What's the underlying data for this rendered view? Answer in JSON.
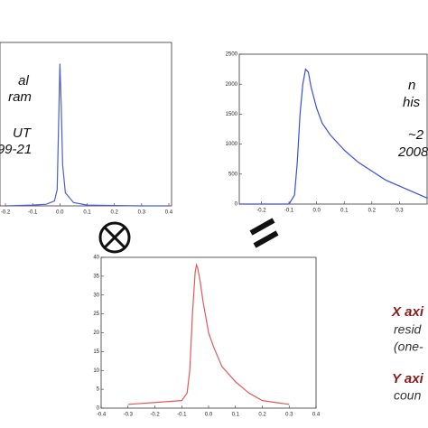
{
  "chart_data": [
    {
      "type": "line",
      "color": "#4a5fd0",
      "x": [
        -0.2,
        -0.1,
        -0.05,
        -0.02,
        -0.01,
        0.0,
        0.005,
        0.01,
        0.02,
        0.05,
        0.1,
        0.2,
        0.3,
        0.4
      ],
      "values": [
        0,
        0.005,
        0.01,
        0.03,
        0.1,
        0.87,
        0.6,
        0.25,
        0.08,
        0.02,
        0.005,
        0.002,
        0,
        0
      ],
      "xlim": [
        -0.22,
        0.41
      ],
      "ylim": [
        0,
        1
      ],
      "xticks": [
        -0.2,
        -0.1,
        {
          "value": 0,
          "label": "0.0"
        },
        0.1,
        0.2,
        0.3,
        0.4
      ],
      "annotations": [
        "al",
        "ram",
        "UT",
        "99-21"
      ]
    },
    {
      "type": "line",
      "color": "#3a4fd8",
      "x": [
        -0.28,
        -0.1,
        -0.08,
        -0.07,
        -0.06,
        -0.05,
        -0.04,
        -0.03,
        -0.02,
        0.0,
        0.02,
        0.05,
        0.1,
        0.15,
        0.2,
        0.25,
        0.3,
        0.35,
        0.4
      ],
      "values": [
        0,
        0,
        150,
        700,
        1500,
        2000,
        2250,
        2200,
        1950,
        1600,
        1350,
        1150,
        900,
        700,
        550,
        400,
        300,
        200,
        100
      ],
      "xlim": [
        -0.28,
        0.4
      ],
      "ylim": [
        0,
        2500
      ],
      "xticks": [
        -0.2,
        -0.1,
        {
          "value": 0,
          "label": "0.0"
        },
        0.1,
        0.2,
        0.3
      ],
      "yticks": [
        0,
        500,
        1000,
        1500,
        2000,
        2500
      ],
      "annotations": [
        "n",
        "his",
        "~2",
        "2008"
      ]
    },
    {
      "type": "line",
      "color": "#e05a5a",
      "x": [
        -0.3,
        -0.2,
        -0.1,
        -0.08,
        -0.07,
        -0.06,
        -0.05,
        -0.045,
        -0.04,
        -0.03,
        -0.02,
        -0.01,
        0.0,
        0.02,
        0.05,
        0.1,
        0.15,
        0.2,
        0.25,
        0.3
      ],
      "values": [
        1,
        1.5,
        2,
        4,
        10,
        25,
        36,
        38,
        37,
        33,
        28,
        24,
        20,
        16,
        11,
        7,
        4,
        2,
        1.5,
        1
      ],
      "xlim": [
        -0.4,
        0.4
      ],
      "ylim": [
        0,
        40
      ],
      "xticks": [
        -0.4,
        -0.3,
        -0.2,
        -0.1,
        {
          "value": 0,
          "label": "0.0"
        },
        0.1,
        0.2,
        0.3,
        0.4
      ],
      "yticks": [
        0,
        5,
        10,
        15,
        20,
        25,
        30,
        35,
        40
      ],
      "annotations": [
        "X axi",
        "resid",
        "(one-",
        "Y axi",
        "coun"
      ]
    }
  ]
}
